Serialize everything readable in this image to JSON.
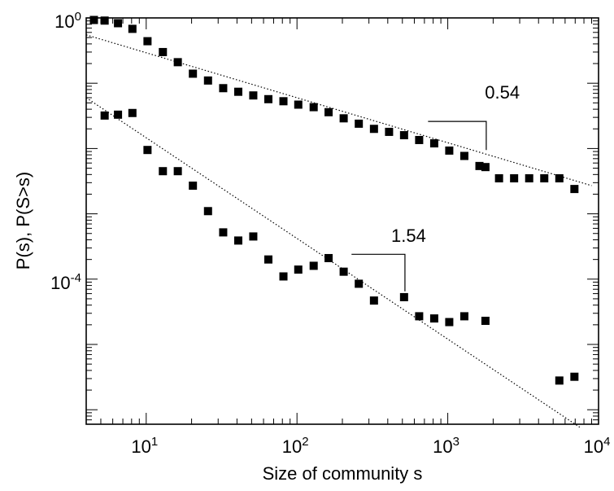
{
  "chart_data": {
    "type": "scatter",
    "xlabel": "Size of community s",
    "ylabel": "P(s), P(S>s)",
    "xscale": "log",
    "yscale": "log",
    "xlim": [
      4,
      10000
    ],
    "ylim": [
      6e-07,
      1
    ],
    "grid": false,
    "x_ticks": [
      {
        "value": 10,
        "base": "10",
        "exp": "1"
      },
      {
        "value": 100,
        "base": "10",
        "exp": "2"
      },
      {
        "value": 1000,
        "base": "10",
        "exp": "3"
      },
      {
        "value": 10000,
        "base": "10",
        "exp": "4"
      }
    ],
    "y_ticks": [
      {
        "value": 1,
        "base": "10",
        "exp": "0"
      },
      {
        "value": 0.0001,
        "base": "10",
        "exp": "-4"
      }
    ],
    "series": [
      {
        "x": [
          4.5,
          5.3,
          6.5,
          8.1,
          10.2,
          12.9,
          16.2,
          20.4,
          25.7,
          32.4,
          40.8,
          51.3,
          64.6,
          81.3,
          102,
          129,
          162,
          204,
          257,
          324,
          408,
          513,
          646,
          813,
          1023,
          1288,
          1622,
          1778,
          2188,
          2754,
          3467,
          4365,
          5495,
          6918
        ],
        "y": [
          0.93,
          0.91,
          0.83,
          0.68,
          0.44,
          0.3,
          0.21,
          0.14,
          0.11,
          0.084,
          0.074,
          0.065,
          0.057,
          0.053,
          0.047,
          0.043,
          0.036,
          0.029,
          0.024,
          0.02,
          0.018,
          0.016,
          0.0135,
          0.012,
          0.0093,
          0.0077,
          0.0054,
          0.0052,
          0.0035,
          0.0035,
          0.0035,
          0.0035,
          0.0035,
          0.0024
        ]
      },
      {
        "x": [
          5.3,
          6.5,
          8.1,
          10.2,
          12.9,
          16.2,
          20.4,
          25.7,
          32.4,
          40.8,
          51.3,
          64.6,
          81.3,
          102,
          129,
          162,
          204,
          257,
          324,
          513,
          646,
          813,
          1023,
          1288,
          1778,
          5495,
          6918
        ],
        "y": [
          0.032,
          0.033,
          0.035,
          0.0095,
          0.0045,
          0.0045,
          0.0027,
          0.0011,
          0.00052,
          0.00039,
          0.00045,
          0.0002,
          0.00011,
          0.00014,
          0.00016,
          0.00021,
          0.00013,
          8.5e-05,
          4.7e-05,
          5.3e-05,
          2.7e-05,
          2.5e-05,
          2.2e-05,
          2.7e-05,
          2.3e-05,
          2.8e-06,
          3.2e-06
        ]
      }
    ],
    "fits": [
      {
        "x": [
          4,
          9000
        ],
        "y": [
          0.55,
          0.0027
        ]
      },
      {
        "x": [
          4,
          7500
        ],
        "y": [
          0.06,
          5.4e-07
        ]
      }
    ],
    "annotations": [
      {
        "text": "0.54",
        "label_x": 2300,
        "label_y": 0.058,
        "x": [
          740,
          1800,
          1800
        ],
        "y": [
          0.026,
          0.026,
          0.0095
        ]
      },
      {
        "text": "1.54",
        "label_x": 550,
        "label_y": 0.00037,
        "x": [
          230,
          520,
          520
        ],
        "y": [
          0.00024,
          0.00024,
          6.5e-05
        ]
      }
    ]
  }
}
